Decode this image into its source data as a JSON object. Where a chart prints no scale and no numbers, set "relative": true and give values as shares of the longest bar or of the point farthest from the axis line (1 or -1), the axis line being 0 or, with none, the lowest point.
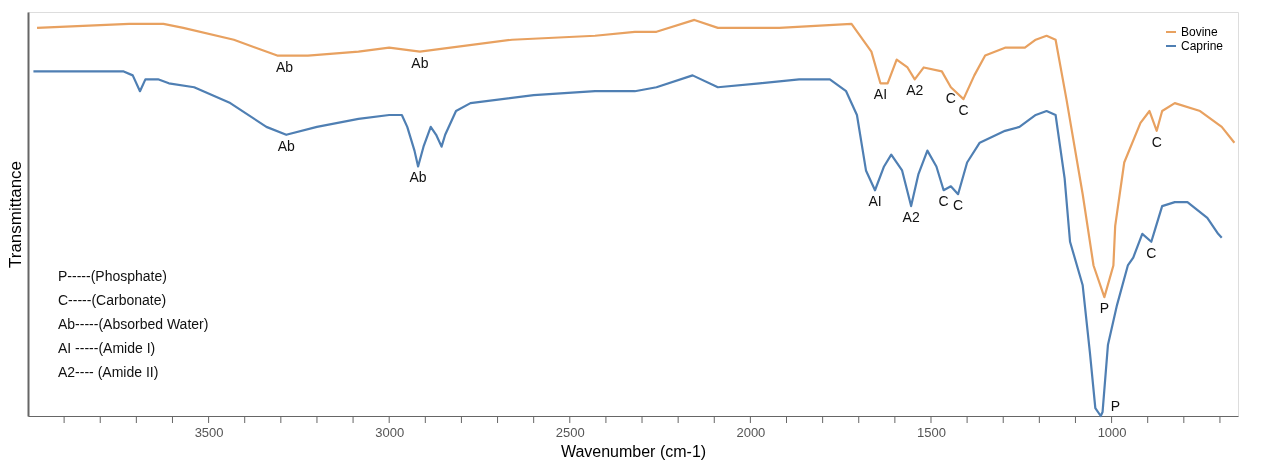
{
  "chart_data": {
    "type": "line",
    "relative": true,
    "xlabel": "Wavenumber (cm-1)",
    "ylabel": "Transmittance",
    "xlim": [
      4000,
      650
    ],
    "xticks": [
      {
        "value": 3900,
        "label": null
      },
      {
        "value": 3800,
        "label": null
      },
      {
        "value": 3700,
        "label": null
      },
      {
        "value": 3600,
        "label": null
      },
      3500,
      {
        "value": 3400,
        "label": null
      },
      {
        "value": 3300,
        "label": null
      },
      {
        "value": 3200,
        "label": null
      },
      {
        "value": 3100,
        "label": null
      },
      3000,
      {
        "value": 2900,
        "label": null
      },
      {
        "value": 2800,
        "label": null
      },
      {
        "value": 2700,
        "label": null
      },
      {
        "value": 2600,
        "label": null
      },
      2500,
      {
        "value": 2400,
        "label": null
      },
      {
        "value": 2300,
        "label": null
      },
      {
        "value": 2200,
        "label": null
      },
      {
        "value": 2100,
        "label": null
      },
      2000,
      {
        "value": 1900,
        "label": null
      },
      {
        "value": 1800,
        "label": null
      },
      {
        "value": 1700,
        "label": null
      },
      {
        "value": 1600,
        "label": null
      },
      1500,
      {
        "value": 1400,
        "label": null
      },
      {
        "value": 1300,
        "label": null
      },
      {
        "value": 1200,
        "label": null
      },
      {
        "value": 1100,
        "label": null
      },
      1000,
      {
        "value": 900,
        "label": null
      },
      {
        "value": 800,
        "label": null
      },
      {
        "value": 700,
        "label": null
      }
    ],
    "grid": false,
    "legend": "top right",
    "marker": "none",
    "line_style": "solid",
    "series": [
      {
        "name": "Bovine",
        "color": "#e8a160",
        "x": [
          3975,
          3720,
          3625,
          3570,
          3430,
          3310,
          3225,
          3085,
          3000,
          2915,
          2830,
          2660,
          2430,
          2320,
          2260,
          2155,
          2090,
          2035,
          1920,
          1720,
          1665,
          1640,
          1620,
          1595,
          1565,
          1545,
          1520,
          1470,
          1445,
          1410,
          1380,
          1350,
          1295,
          1240,
          1210,
          1180,
          1155,
          1125,
          1080,
          1050,
          1020,
          995,
          990,
          965,
          920,
          895,
          875,
          860,
          825,
          755,
          695,
          660
        ],
        "values": [
          0.98,
          0.99,
          0.99,
          0.98,
          0.95,
          0.91,
          0.91,
          0.92,
          0.93,
          0.92,
          0.93,
          0.95,
          0.96,
          0.97,
          0.97,
          1.0,
          0.98,
          0.98,
          0.98,
          0.99,
          0.92,
          0.84,
          0.84,
          0.9,
          0.88,
          0.85,
          0.88,
          0.87,
          0.83,
          0.8,
          0.86,
          0.91,
          0.93,
          0.93,
          0.95,
          0.96,
          0.95,
          0.8,
          0.56,
          0.38,
          0.3,
          0.38,
          0.48,
          0.64,
          0.74,
          0.77,
          0.72,
          0.77,
          0.79,
          0.77,
          0.73,
          0.69
        ]
      },
      {
        "name": "Caprine",
        "color": "#4f7fb3",
        "x": [
          3985,
          3735,
          3710,
          3690,
          3675,
          3640,
          3610,
          3540,
          3440,
          3340,
          3285,
          3200,
          3085,
          3000,
          2965,
          2950,
          2930,
          2920,
          2905,
          2885,
          2870,
          2855,
          2845,
          2815,
          2775,
          2600,
          2430,
          2320,
          2260,
          2160,
          2090,
          1975,
          1865,
          1780,
          1735,
          1705,
          1680,
          1655,
          1630,
          1610,
          1580,
          1555,
          1535,
          1510,
          1485,
          1465,
          1445,
          1425,
          1400,
          1365,
          1295,
          1255,
          1210,
          1180,
          1155,
          1130,
          1115,
          1080,
          1060,
          1045,
          1030,
          1025,
          1010,
          985,
          955,
          940,
          915,
          890,
          880,
          860,
          825,
          790,
          735,
          705,
          695
        ],
        "values": [
          0.87,
          0.87,
          0.86,
          0.82,
          0.85,
          0.85,
          0.84,
          0.83,
          0.79,
          0.73,
          0.71,
          0.73,
          0.75,
          0.76,
          0.76,
          0.73,
          0.67,
          0.63,
          0.68,
          0.73,
          0.71,
          0.68,
          0.71,
          0.77,
          0.79,
          0.81,
          0.82,
          0.82,
          0.83,
          0.86,
          0.83,
          0.84,
          0.85,
          0.85,
          0.82,
          0.76,
          0.62,
          0.57,
          0.63,
          0.66,
          0.62,
          0.53,
          0.61,
          0.67,
          0.63,
          0.57,
          0.58,
          0.56,
          0.64,
          0.69,
          0.72,
          0.73,
          0.76,
          0.77,
          0.76,
          0.6,
          0.44,
          0.33,
          0.16,
          0.02,
          0.0,
          0.01,
          0.18,
          0.28,
          0.38,
          0.4,
          0.46,
          0.44,
          0.47,
          0.53,
          0.54,
          0.54,
          0.5,
          0.46,
          0.45
        ]
      }
    ],
    "annotations": [
      {
        "text": "Ab",
        "x": 3290,
        "y": 0.91
      },
      {
        "text": "Ab",
        "x": 2915,
        "y": 0.92
      },
      {
        "text": "AI",
        "x": 1640,
        "y": 0.84
      },
      {
        "text": "A2",
        "x": 1545,
        "y": 0.85
      },
      {
        "text": "C",
        "x": 1445,
        "y": 0.83
      },
      {
        "text": "C",
        "x": 1410,
        "y": 0.8
      },
      {
        "text": "P",
        "x": 1020,
        "y": 0.3
      },
      {
        "text": "C",
        "x": 875,
        "y": 0.72
      },
      {
        "text": "Ab",
        "x": 3285,
        "y": 0.71
      },
      {
        "text": "Ab",
        "x": 2920,
        "y": 0.63
      },
      {
        "text": "AI",
        "x": 1655,
        "y": 0.57
      },
      {
        "text": "A2",
        "x": 1555,
        "y": 0.53
      },
      {
        "text": "C",
        "x": 1465,
        "y": 0.57
      },
      {
        "text": "C",
        "x": 1425,
        "y": 0.56
      },
      {
        "text": "C",
        "x": 890,
        "y": 0.44
      },
      {
        "text": "P",
        "x": 1030,
        "y": 0.0
      },
      "P-----(Phosphate)",
      "C-----(Carbonate)",
      "Ab-----(Absorbed Water)",
      "AI -----(Amide I)",
      "A2----  (Amide II)"
    ]
  }
}
